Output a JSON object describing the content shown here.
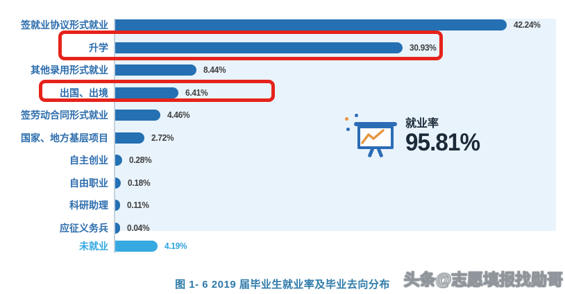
{
  "chart_data": {
    "type": "bar",
    "orientation": "horizontal",
    "categories": [
      "签就业协议形式就业",
      "升学",
      "其他录用形式就业",
      "出国、出境",
      "签劳动合同形式就业",
      "国家、地方基层项目",
      "自主创业",
      "自由职业",
      "科研助理",
      "应征义务兵",
      "未就业"
    ],
    "values": [
      42.24,
      30.93,
      8.44,
      6.41,
      4.46,
      2.72,
      0.28,
      0.18,
      0.11,
      0.04,
      4.19
    ],
    "value_labels": [
      "42.24%",
      "30.93%",
      "8.44%",
      "6.41%",
      "4.46%",
      "2.72%",
      "0.28%",
      "0.18%",
      "0.11%",
      "0.04%",
      "4.19%"
    ],
    "title": "图 1- 6  2019 届毕业生就业率及毕业去向分布",
    "xlabel": "",
    "ylabel": "",
    "xlim": [
      0,
      45
    ],
    "grid": false,
    "legend": "none",
    "bar_color": "#2470b3",
    "unemployed_bar_color": "#36a9e1",
    "plot_background": "#e9f3fb",
    "annotations": {
      "red_highlight_boxes": [
        "升学",
        "出国、出境"
      ],
      "red_color": "#e5231b"
    }
  },
  "callout": {
    "label": "就业率",
    "value": "95.81%",
    "icon": "presentation-line-chart-icon",
    "icon_color": "#2b6cb5",
    "zigzag_color": "#e5953f"
  },
  "caption": "图 1- 6  2019 届毕业生就业率及毕业去向分布",
  "watermark": "头条@志愿填报找勋哥"
}
